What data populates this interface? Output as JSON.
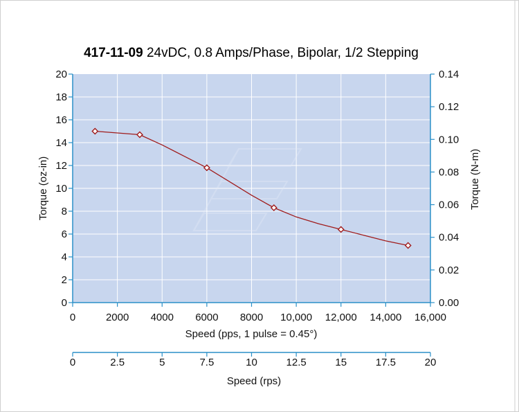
{
  "chart_data": {
    "type": "line",
    "title_bold": "417-11-09",
    "title_rest": " 24vDC, 0.8 Amps/Phase, Bipolar, 1/2 Stepping",
    "xlabel": "Speed (pps, 1 pulse = 0.45°)",
    "ylabel": "Torque (oz-in)",
    "y2label": "Torque (N-m)",
    "x2label": "Speed (rps)",
    "xlim": [
      0,
      16000
    ],
    "ylim": [
      0,
      20
    ],
    "y2lim": [
      0,
      0.14
    ],
    "x2lim": [
      0,
      20
    ],
    "x_ticks": [
      "0",
      "2000",
      "4000",
      "6000",
      "8000",
      "10,000",
      "12,000",
      "14,000",
      "16,000"
    ],
    "y_ticks": [
      "0",
      "2",
      "4",
      "6",
      "8",
      "10",
      "12",
      "14",
      "16",
      "18",
      "20"
    ],
    "y2_ticks": [
      "0.00",
      "0.02",
      "0.04",
      "0.06",
      "0.08",
      "0.10",
      "0.12",
      "0.14"
    ],
    "x2_ticks": [
      "0",
      "2.5",
      "5",
      "7.5",
      "10",
      "12.5",
      "15",
      "17.5",
      "20"
    ],
    "grid": true,
    "colors": {
      "plot_bg": "#c8d6ee",
      "series": "#a01c1c",
      "axis": "#2a8fc7",
      "grid": "#ffffff"
    },
    "series": [
      {
        "markers": [
          {
            "x": 1000,
            "y": 15.0
          },
          {
            "x": 3000,
            "y": 14.7
          },
          {
            "x": 6000,
            "y": 11.8
          },
          {
            "x": 9000,
            "y": 8.3
          },
          {
            "x": 12000,
            "y": 6.4
          },
          {
            "x": 15000,
            "y": 5.0
          }
        ],
        "curve": [
          {
            "x": 1000,
            "y": 15.0
          },
          {
            "x": 3000,
            "y": 14.7
          },
          {
            "x": 4000,
            "y": 13.8
          },
          {
            "x": 5000,
            "y": 12.8
          },
          {
            "x": 6000,
            "y": 11.8
          },
          {
            "x": 7000,
            "y": 10.6
          },
          {
            "x": 8000,
            "y": 9.4
          },
          {
            "x": 9000,
            "y": 8.3
          },
          {
            "x": 10000,
            "y": 7.5
          },
          {
            "x": 11000,
            "y": 6.9
          },
          {
            "x": 12000,
            "y": 6.4
          },
          {
            "x": 13000,
            "y": 5.9
          },
          {
            "x": 14000,
            "y": 5.4
          },
          {
            "x": 15000,
            "y": 5.0
          }
        ]
      }
    ]
  }
}
